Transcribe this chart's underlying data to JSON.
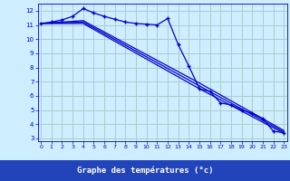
{
  "background_color": "#cceeff",
  "grid_color": "#aacccc",
  "line_color": "#0000cc",
  "xlabel": "Graphe des températures (°c)",
  "xlabel_bg": "#2244bb",
  "ylim": [
    2.8,
    12.5
  ],
  "xlim": [
    -0.3,
    23.3
  ],
  "yticks": [
    3,
    4,
    5,
    6,
    7,
    8,
    9,
    10,
    11,
    12
  ],
  "xticks": [
    0,
    1,
    2,
    3,
    4,
    5,
    6,
    7,
    8,
    9,
    10,
    11,
    12,
    13,
    14,
    15,
    16,
    17,
    18,
    19,
    20,
    21,
    22,
    23
  ],
  "series_main": {
    "x": [
      0,
      1,
      2,
      3,
      4,
      5,
      6,
      7,
      8,
      9,
      10,
      11,
      12,
      13,
      14,
      15,
      16,
      17,
      18,
      19,
      20,
      21,
      22,
      23
    ],
    "y": [
      11.1,
      11.2,
      11.35,
      11.6,
      12.15,
      11.85,
      11.6,
      11.4,
      11.2,
      11.1,
      11.05,
      11.0,
      11.45,
      9.6,
      8.1,
      6.5,
      6.3,
      5.5,
      5.35,
      5.0,
      4.75,
      4.4,
      3.5,
      3.4
    ],
    "marker": "+"
  },
  "series_lines": [
    {
      "x": [
        0,
        4,
        15,
        23
      ],
      "y": [
        11.1,
        11.1,
        6.5,
        3.35
      ]
    },
    {
      "x": [
        0,
        4,
        15,
        23
      ],
      "y": [
        11.1,
        11.2,
        6.7,
        3.45
      ]
    },
    {
      "x": [
        0,
        4,
        15,
        23
      ],
      "y": [
        11.1,
        11.3,
        6.9,
        3.55
      ]
    }
  ]
}
